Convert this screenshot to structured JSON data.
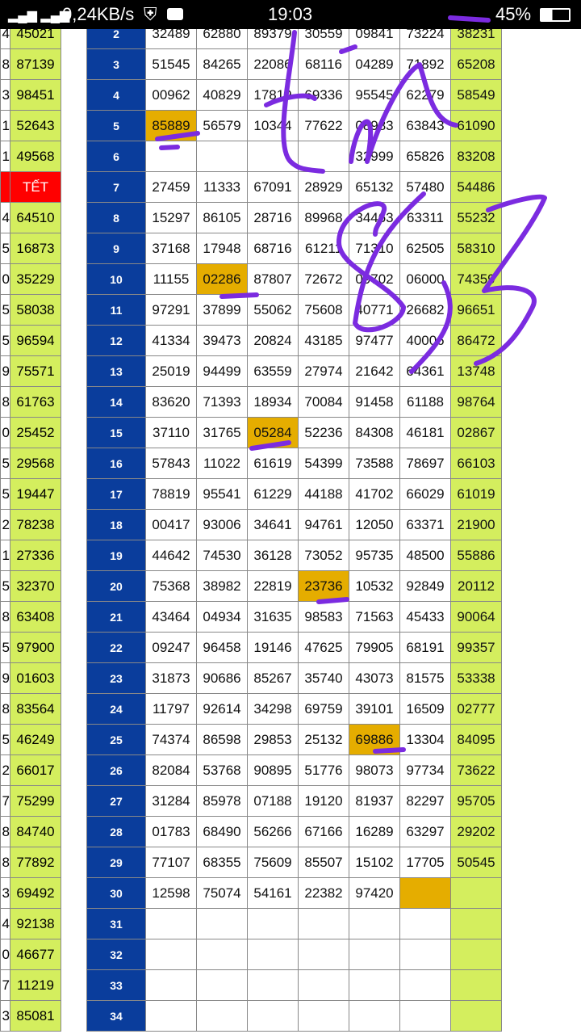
{
  "status_bar": {
    "network_speed": "0,24KB/s",
    "time": "19:03",
    "battery": "45%"
  },
  "left_column": [
    {
      "d": "4",
      "v": "45021"
    },
    {
      "d": "8",
      "v": "87139"
    },
    {
      "d": "3",
      "v": "98451"
    },
    {
      "d": "1",
      "v": "52643"
    },
    {
      "d": "1",
      "v": "49568"
    },
    {
      "d": "",
      "v": "TẾT",
      "tet": true
    },
    {
      "d": "4",
      "v": "64510"
    },
    {
      "d": "5",
      "v": "16873"
    },
    {
      "d": "0",
      "v": "35229"
    },
    {
      "d": "5",
      "v": "58038"
    },
    {
      "d": "5",
      "v": "96594"
    },
    {
      "d": "9",
      "v": "75571"
    },
    {
      "d": "8",
      "v": "61763"
    },
    {
      "d": "0",
      "v": "25452"
    },
    {
      "d": "5",
      "v": "29568"
    },
    {
      "d": "5",
      "v": "19447"
    },
    {
      "d": "2",
      "v": "78238"
    },
    {
      "d": "1",
      "v": "27336"
    },
    {
      "d": "5",
      "v": "32370"
    },
    {
      "d": "8",
      "v": "63408"
    },
    {
      "d": "5",
      "v": "97900"
    },
    {
      "d": "9",
      "v": "01603"
    },
    {
      "d": "8",
      "v": "83564"
    },
    {
      "d": "5",
      "v": "46249"
    },
    {
      "d": "2",
      "v": "66017"
    },
    {
      "d": "7",
      "v": "75299"
    },
    {
      "d": "8",
      "v": "84740"
    },
    {
      "d": "8",
      "v": "77892"
    },
    {
      "d": "3",
      "v": "69492"
    },
    {
      "d": "4",
      "v": "92138"
    },
    {
      "d": "0",
      "v": "46677"
    },
    {
      "d": "7",
      "v": "11219"
    },
    {
      "d": "3",
      "v": "85081"
    }
  ],
  "rows": [
    {
      "n": "2",
      "c": [
        "32489",
        "62880",
        "89379",
        "30559",
        "09841",
        "73224"
      ],
      "g": "38231"
    },
    {
      "n": "3",
      "c": [
        "51545",
        "84265",
        "22086",
        "68116",
        "04289",
        "71892"
      ],
      "g": "65208"
    },
    {
      "n": "4",
      "c": [
        "00962",
        "40829",
        "17819",
        "69336",
        "95545",
        "62279"
      ],
      "g": "58549"
    },
    {
      "n": "5",
      "c": [
        "85889",
        "56579",
        "10344",
        "77622",
        "08983",
        "63843"
      ],
      "g": "61090",
      "hl": 0
    },
    {
      "n": "6",
      "c": [
        "",
        "",
        "",
        "",
        "32999",
        "65826"
      ],
      "g": "83208"
    },
    {
      "n": "7",
      "c": [
        "27459",
        "11333",
        "67091",
        "28929",
        "65132",
        "57480"
      ],
      "g": "54486"
    },
    {
      "n": "8",
      "c": [
        "15297",
        "86105",
        "28716",
        "89968",
        "34463",
        "63311"
      ],
      "g": "55232"
    },
    {
      "n": "9",
      "c": [
        "37168",
        "17948",
        "68716",
        "61211",
        "71310",
        "62505"
      ],
      "g": "58310"
    },
    {
      "n": "10",
      "c": [
        "11155",
        "02286",
        "87807",
        "72672",
        "09702",
        "06000"
      ],
      "g": "74359",
      "hl": 1
    },
    {
      "n": "11",
      "c": [
        "97291",
        "37899",
        "55062",
        "75608",
        "40771",
        "26682"
      ],
      "g": "96651"
    },
    {
      "n": "12",
      "c": [
        "41334",
        "39473",
        "20824",
        "43185",
        "97477",
        "40006"
      ],
      "g": "86472"
    },
    {
      "n": "13",
      "c": [
        "25019",
        "94499",
        "63559",
        "27974",
        "21642",
        "64361"
      ],
      "g": "13748"
    },
    {
      "n": "14",
      "c": [
        "83620",
        "71393",
        "18934",
        "70084",
        "91458",
        "61188"
      ],
      "g": "98764"
    },
    {
      "n": "15",
      "c": [
        "37110",
        "31765",
        "05284",
        "52236",
        "84308",
        "46181"
      ],
      "g": "02867",
      "hl": 2
    },
    {
      "n": "16",
      "c": [
        "57843",
        "11022",
        "61619",
        "54399",
        "73588",
        "78697"
      ],
      "g": "66103"
    },
    {
      "n": "17",
      "c": [
        "78819",
        "95541",
        "61229",
        "44188",
        "41702",
        "66029"
      ],
      "g": "61019"
    },
    {
      "n": "18",
      "c": [
        "00417",
        "93006",
        "34641",
        "94761",
        "12050",
        "63371"
      ],
      "g": "21900"
    },
    {
      "n": "19",
      "c": [
        "44642",
        "74530",
        "36128",
        "73052",
        "95735",
        "48500"
      ],
      "g": "55886"
    },
    {
      "n": "20",
      "c": [
        "75368",
        "38982",
        "22819",
        "23736",
        "10532",
        "92849"
      ],
      "g": "20112",
      "hl": 3
    },
    {
      "n": "21",
      "c": [
        "43464",
        "04934",
        "31635",
        "98583",
        "71563",
        "45433"
      ],
      "g": "90064"
    },
    {
      "n": "22",
      "c": [
        "09247",
        "96458",
        "19146",
        "47625",
        "79905",
        "68191"
      ],
      "g": "99357"
    },
    {
      "n": "23",
      "c": [
        "31873",
        "90686",
        "85267",
        "35740",
        "43073",
        "81575"
      ],
      "g": "53338"
    },
    {
      "n": "24",
      "c": [
        "11797",
        "92614",
        "34298",
        "69759",
        "39101",
        "16509"
      ],
      "g": "02777"
    },
    {
      "n": "25",
      "c": [
        "74374",
        "86598",
        "29853",
        "25132",
        "69886",
        "13304"
      ],
      "g": "84095",
      "hl": 4
    },
    {
      "n": "26",
      "c": [
        "82084",
        "53768",
        "90895",
        "51776",
        "98073",
        "97734"
      ],
      "g": "73622"
    },
    {
      "n": "27",
      "c": [
        "31284",
        "85978",
        "07188",
        "19120",
        "81937",
        "82297"
      ],
      "g": "95705"
    },
    {
      "n": "28",
      "c": [
        "01783",
        "68490",
        "56266",
        "67166",
        "16289",
        "63297"
      ],
      "g": "29202"
    },
    {
      "n": "29",
      "c": [
        "77107",
        "68355",
        "75609",
        "85507",
        "15102",
        "17705"
      ],
      "g": "50545"
    },
    {
      "n": "30",
      "c": [
        "12598",
        "75074",
        "54161",
        "22382",
        "97420",
        ""
      ],
      "g": "",
      "hl": 5
    },
    {
      "n": "31",
      "c": [
        "",
        "",
        "",
        "",
        "",
        ""
      ],
      "g": ""
    },
    {
      "n": "32",
      "c": [
        "",
        "",
        "",
        "",
        "",
        ""
      ],
      "g": ""
    },
    {
      "n": "33",
      "c": [
        "",
        "",
        "",
        "",
        "",
        ""
      ],
      "g": ""
    },
    {
      "n": "34",
      "c": [
        "",
        "",
        "",
        "",
        "",
        ""
      ],
      "g": ""
    }
  ],
  "colors": {
    "row_number_bg": "#0a3d9c",
    "special_column_bg": "#d4ee5e",
    "highlight": "#e5ad00",
    "tet": "#ff0000",
    "ink": "#7b2be0"
  }
}
